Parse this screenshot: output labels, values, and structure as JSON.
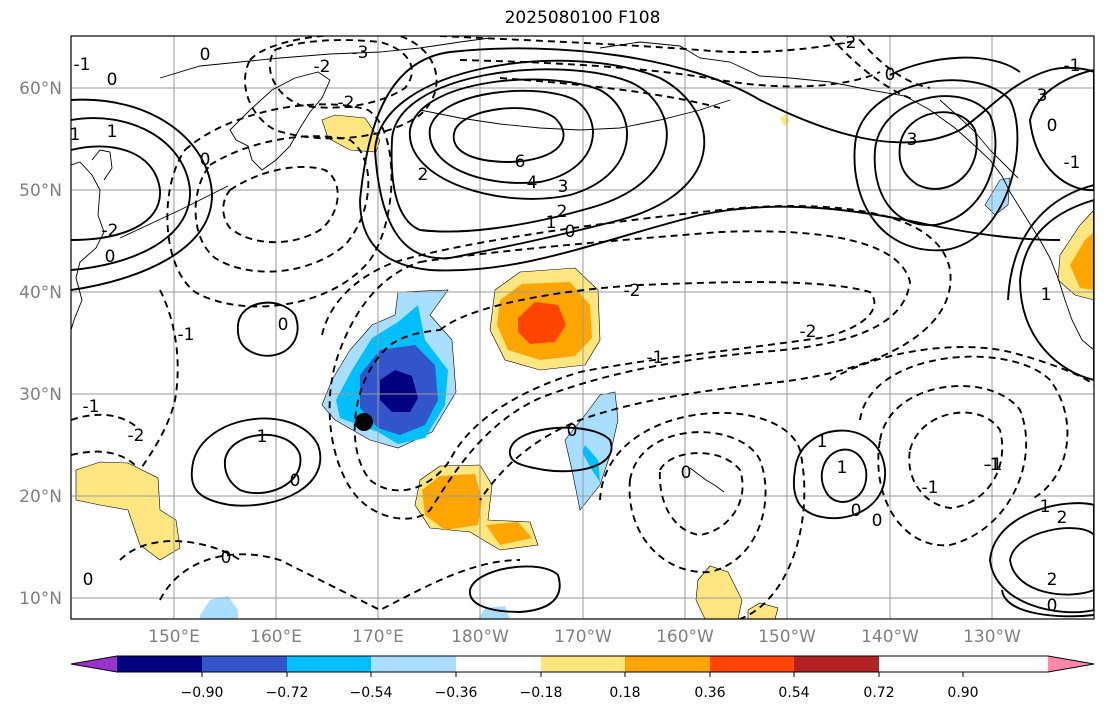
{
  "figure": {
    "title": "2025080100 F108"
  },
  "map": {
    "lat_ticks": [
      "60°N",
      "50°N",
      "40°N",
      "30°N",
      "20°N",
      "10°N"
    ],
    "lon_ticks": [
      "150°E",
      "160°E",
      "170°E",
      "180°W",
      "170°W",
      "160°W",
      "150°W",
      "140°W",
      "130°W"
    ],
    "lon_range": [
      140,
      240
    ],
    "lat_range": [
      8,
      65
    ],
    "grid": true,
    "contour_label_values": [
      "-1",
      "0",
      "-2",
      "0",
      "-3",
      "2",
      "1",
      "0",
      "-1",
      "6",
      "4",
      "3",
      "2",
      "1",
      "0",
      "-1",
      "0",
      "-1",
      "0",
      "-2",
      "-2",
      "-1",
      "0",
      "1",
      "0",
      "-2",
      "1",
      "1",
      "0",
      "-1",
      "-1",
      "0",
      "1",
      "0",
      "1",
      "2",
      "2",
      "0",
      "3",
      "0",
      "3",
      "-1",
      "-1",
      "0",
      "-1",
      "-2",
      "-2",
      "0",
      "-2",
      "0"
    ],
    "storm_marker": "filled-circle",
    "colors": {
      "contour_line": "#000000",
      "grid_line": "#9a9a9a",
      "tick_label": "#808080"
    }
  },
  "colorbar": {
    "tick_labels": [
      "−0.90",
      "−0.72",
      "−0.54",
      "−0.36",
      "−0.18",
      "0.18",
      "0.36",
      "0.54",
      "0.72",
      "0.90"
    ],
    "colors": [
      "#9933cc",
      "#000080",
      "#3355cc",
      "#00bfff",
      "#aadeff",
      "#ffffff",
      "#ffe680",
      "#ffa500",
      "#ff4500",
      "#b22222",
      "#ff88aa"
    ]
  }
}
